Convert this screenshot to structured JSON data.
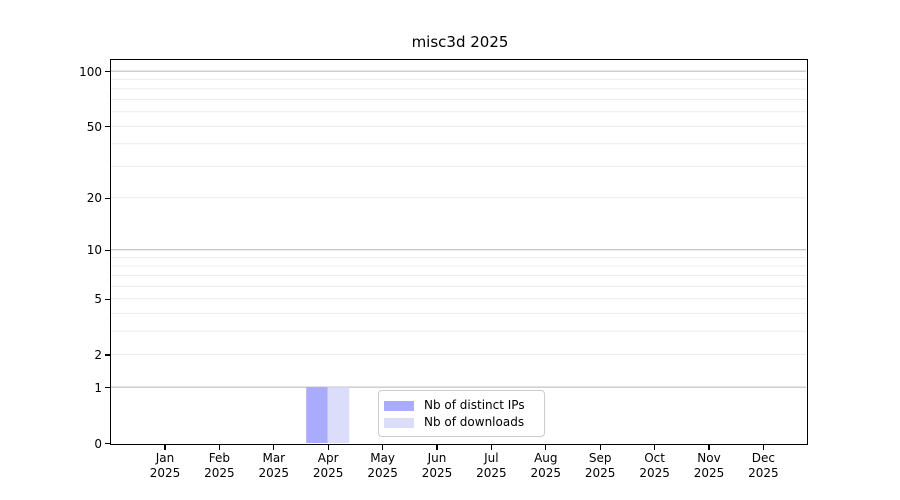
{
  "chart_data": {
    "type": "bar",
    "title": "misc3d 2025",
    "categories": [
      "Jan",
      "Feb",
      "Mar",
      "Apr",
      "May",
      "Jun",
      "Jul",
      "Aug",
      "Sep",
      "Oct",
      "Nov",
      "Dec"
    ],
    "year_label": "2025",
    "series": [
      {
        "name": "Nb of distinct IPs",
        "color": "#aaaaff",
        "values": [
          0,
          0,
          0,
          1,
          0,
          0,
          0,
          0,
          0,
          0,
          0,
          0
        ]
      },
      {
        "name": "Nb of downloads",
        "color": "#dcdcfb",
        "values": [
          0,
          0,
          0,
          1,
          0,
          0,
          0,
          0,
          0,
          0,
          0,
          0
        ]
      }
    ],
    "xlabel": "",
    "ylabel": "",
    "yscale": "log10(1+y)",
    "ylim": [
      0,
      115
    ],
    "yticks": [
      0,
      1,
      2,
      5,
      10,
      20,
      50,
      100
    ],
    "grid": {
      "on": true,
      "major_gridlines": [
        1,
        10,
        100
      ],
      "minor_gridlines": [
        2,
        3,
        4,
        5,
        6,
        7,
        8,
        9,
        20,
        30,
        40,
        50,
        60,
        70,
        80,
        90
      ],
      "major_color": "#b4b4b4",
      "minor_color": "#ececec"
    },
    "legend_position": "lower center inside plot",
    "bar_colors": {
      "distinct_ips": "#aaaaff",
      "downloads": "#dcdcfb"
    }
  }
}
